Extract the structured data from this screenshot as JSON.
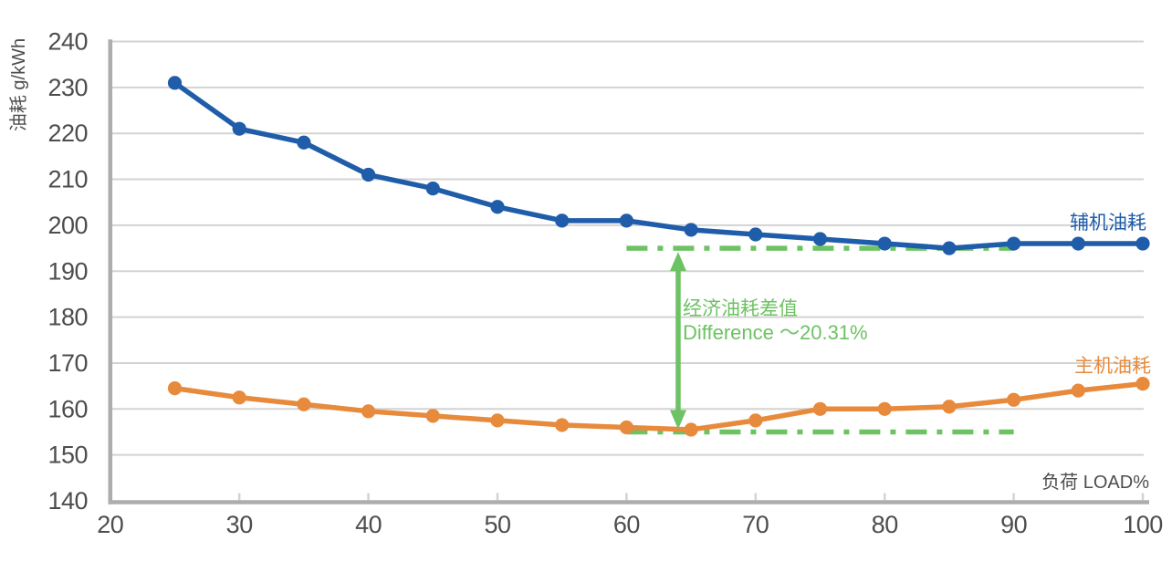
{
  "chart_data": {
    "type": "line",
    "title": "",
    "ylabel": "油耗 g/kWh",
    "xlabel": "负荷 LOAD%",
    "xlim": [
      20,
      100
    ],
    "ylim": [
      140,
      240
    ],
    "x_ticks": [
      20,
      30,
      40,
      50,
      60,
      70,
      80,
      90,
      100
    ],
    "y_ticks": [
      140,
      150,
      160,
      170,
      180,
      190,
      200,
      210,
      220,
      230,
      240
    ],
    "grid": "horizontal-only",
    "legend_position": "inline-right-of-lines",
    "x": [
      25,
      30,
      35,
      40,
      45,
      50,
      55,
      60,
      65,
      70,
      75,
      80,
      85,
      90,
      95,
      100
    ],
    "series": [
      {
        "name": "辅机油耗",
        "color": "#1f5ca9",
        "values": [
          231,
          221,
          218,
          211,
          208,
          204,
          201,
          201,
          199,
          198,
          197,
          196,
          195,
          196,
          196,
          196
        ]
      },
      {
        "name": "主机油耗",
        "color": "#e78a3c",
        "values": [
          164.5,
          162.5,
          161,
          159.5,
          158.5,
          157.5,
          156.5,
          156,
          155.5,
          157.5,
          160,
          160,
          160.5,
          162,
          164,
          165.5
        ]
      }
    ],
    "annotation": {
      "line1": "经济油耗差值",
      "line2": "Difference ～20.31%",
      "color": "#6dc263",
      "ref_top_value": 195,
      "ref_bottom_value": 155,
      "ref_x_span": [
        60,
        90
      ],
      "arrow_x": 64
    },
    "colors": {
      "grid": "#d3d3d3",
      "axis": "#adadad",
      "tick_text": "#4d4d4d"
    }
  }
}
